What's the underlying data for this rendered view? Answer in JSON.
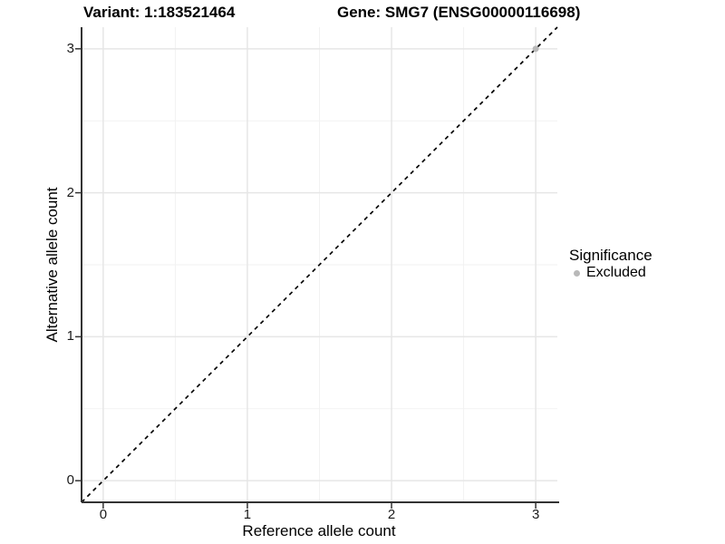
{
  "chart_data": {
    "type": "scatter",
    "titles": {
      "left": "Variant: 1:183521464",
      "right": "Gene: SMG7 (ENSG00000116698)"
    },
    "xlabel": "Reference allele count",
    "ylabel": "Alternative allele count",
    "xlim": [
      -0.15,
      3.15
    ],
    "ylim": [
      -0.15,
      3.15
    ],
    "x_ticks": [
      0,
      1,
      2,
      3
    ],
    "y_ticks": [
      0,
      1,
      2,
      3
    ],
    "x_minor": [
      0.5,
      1.5,
      2.5
    ],
    "y_minor": [
      0.5,
      1.5,
      2.5
    ],
    "grid": {
      "background": "#ffffff",
      "major_color": "#e6e6e6",
      "minor_color": "#f2f2f2"
    },
    "axis": {
      "line_color": "#333333",
      "tick_color": "#333333",
      "tick_label_color": "#1a1a1a"
    },
    "reference_line": {
      "style": "dashed",
      "slope": 1,
      "intercept": 0,
      "color": "#000000"
    },
    "series": [
      {
        "name": "Excluded",
        "color": "#b9b9b9",
        "points": [
          {
            "x": 3,
            "y": 3
          }
        ]
      }
    ],
    "legend": {
      "title": "Significance",
      "position": "right",
      "entries": [
        {
          "label": "Excluded",
          "color": "#b9b9b9"
        }
      ]
    }
  }
}
